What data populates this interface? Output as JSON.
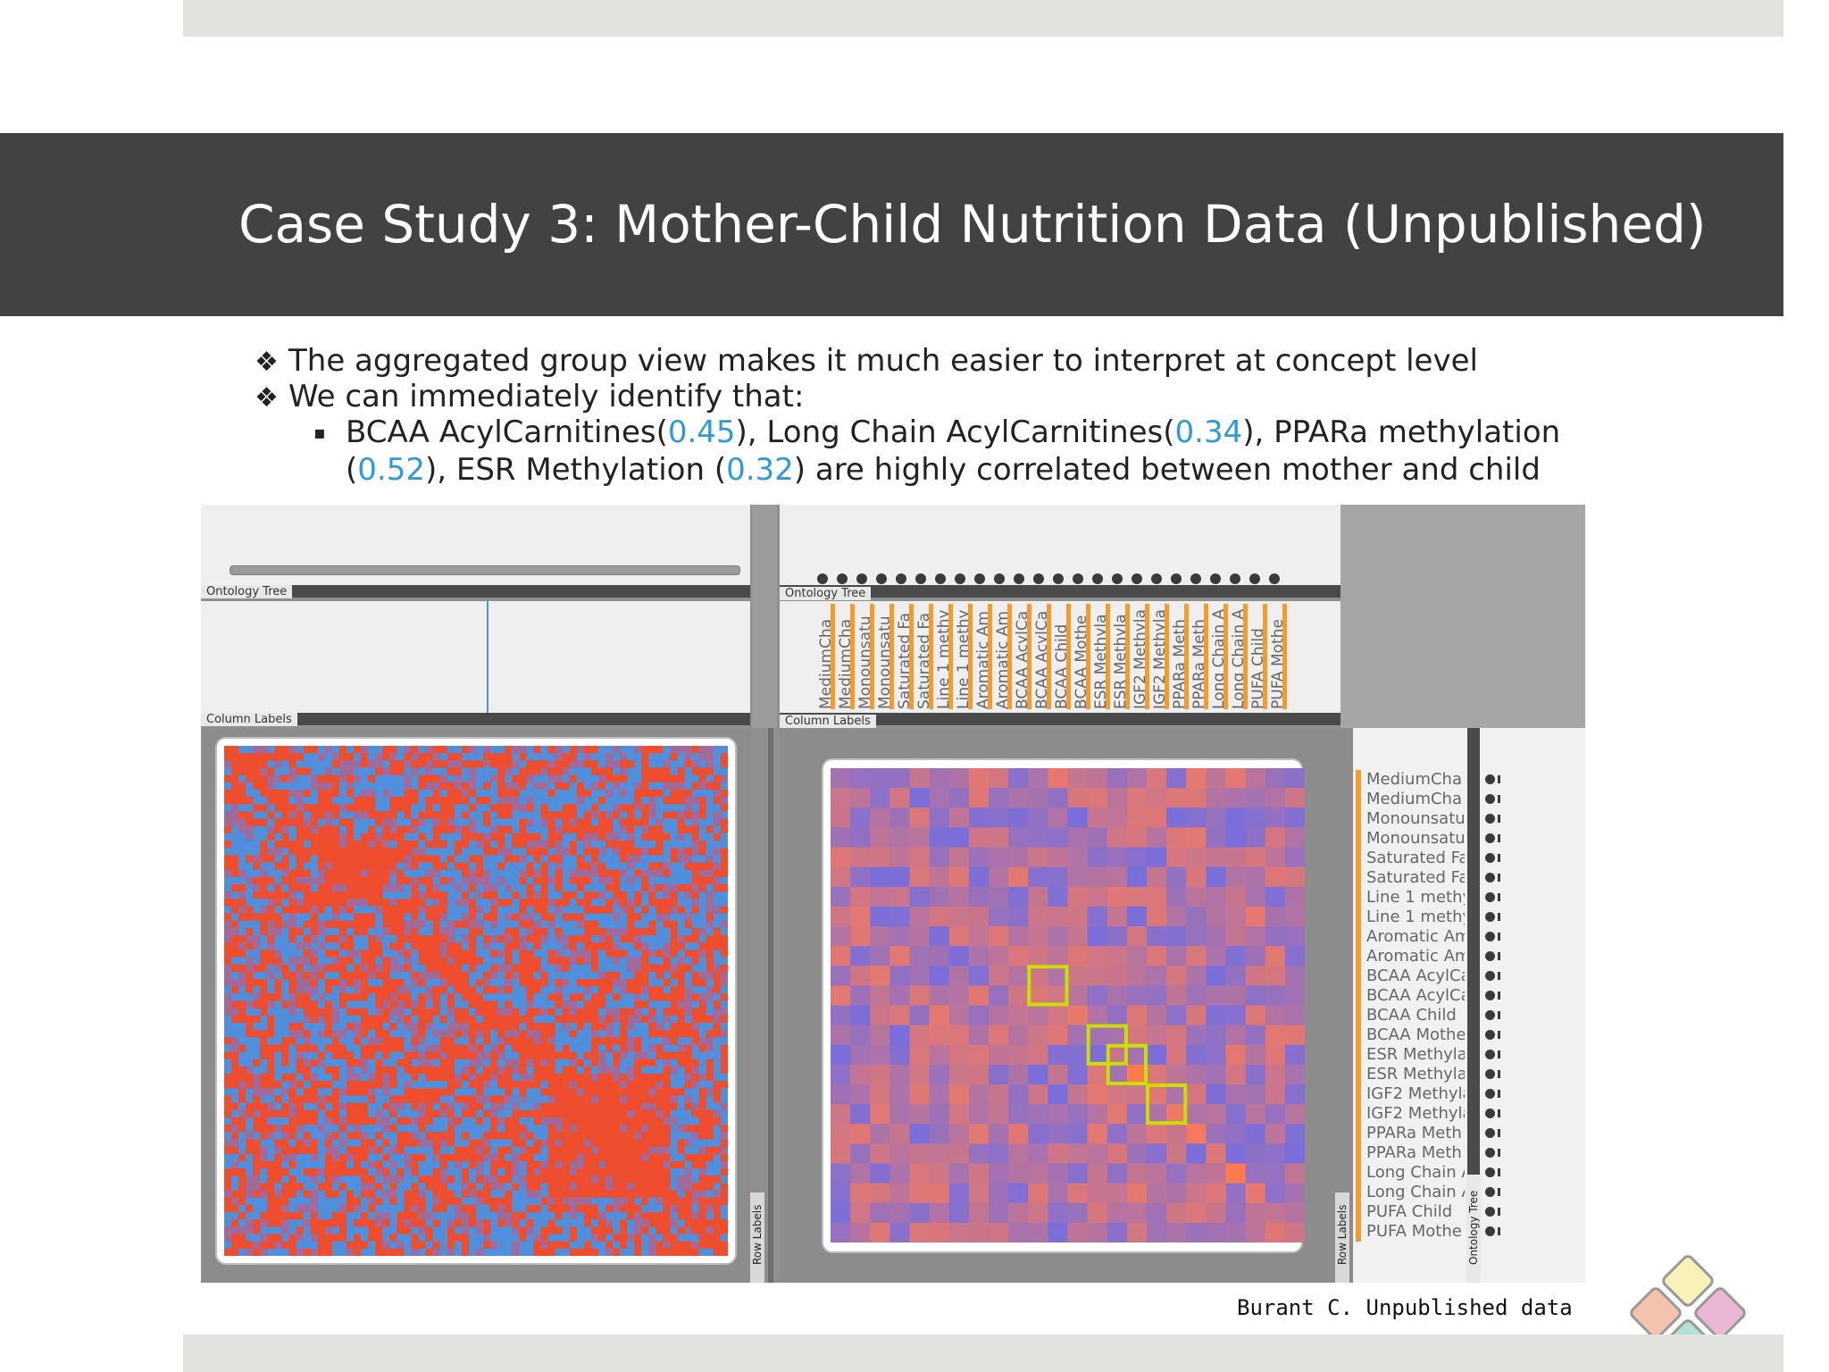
{
  "slide": {
    "title": "Case Study 3: Mother-Child Nutrition Data (Unpublished)",
    "bullet1": "The aggregated group view makes it much easier to interpret at concept level",
    "bullet2": "We can immediately identify that:",
    "diamond": "❖",
    "square": "▪",
    "sub": {
      "p1": "BCAA AcylCarnitines(",
      "n1": "0.45",
      "p2": "), Long Chain AcylCarnitines(",
      "n2": "0.34",
      "p3": "), PPARa methylation",
      "p4": "(",
      "n3": "0.52",
      "p5": "), ESR Methylation (",
      "n4": "0.32",
      "p6": ") are highly correlated between mother and child"
    },
    "credit": "Burant C. Unpublished data"
  },
  "app": {
    "left": {
      "ontology_tree_tag": "Ontology Tree",
      "column_labels_tag": "Column Labels",
      "row_labels_tag": "Row Labels"
    },
    "right": {
      "ontology_tree_tag": "Ontology Tree",
      "column_labels_tag": "Column Labels",
      "row_labels_tag": "Row Labels",
      "ontology_tree_side_tag": "Ontology Tree",
      "labels": [
        "MediumCha",
        "MediumCha",
        "Monounsatu",
        "Monounsatu",
        "Saturated Fa",
        "Saturated Fa",
        "Line 1 methy",
        "Line 1 methy",
        "Aromatic Am",
        "Aromatic Am",
        "BCAA AcylCa",
        "BCAA AcylCa",
        "BCAA Child",
        "BCAA Mothe",
        "ESR Methyla",
        "ESR Methyla",
        "IGF2 Methyla",
        "IGF2 Methyla",
        "PPARa Meth",
        "PPARa Meth",
        "Long Chain A",
        "Long Chain A",
        "PUFA Child",
        "PUFA Mothe"
      ]
    }
  },
  "colors": {
    "title_bg": "#424242",
    "bar_bg": "#e2e3de",
    "accent_number": "#2e9ad6",
    "heat_red": "#ef4e2e",
    "heat_blue": "#4f8fdc",
    "highlight": "#c8e000",
    "label_orange": "#f29b2f"
  }
}
